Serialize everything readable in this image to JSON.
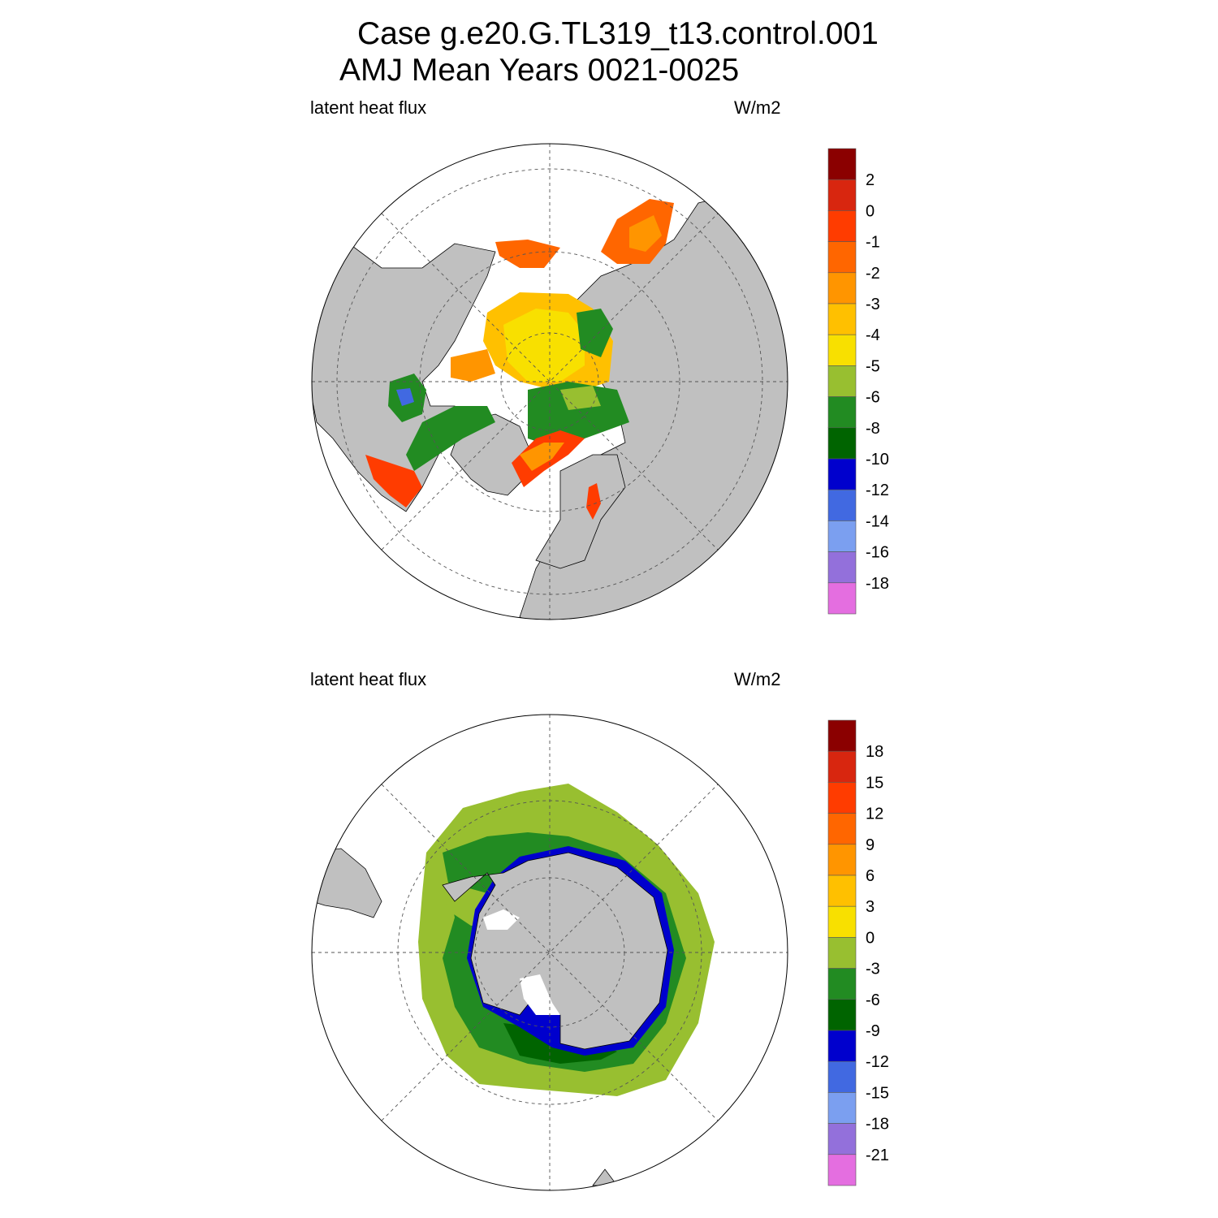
{
  "title": {
    "line1": "Case g.e20.G.TL319_t13.control.001",
    "line2": "AMJ Mean   Years 0021-0025"
  },
  "panels": [
    {
      "id": "north",
      "hemisphere": "Northern Hemisphere polar stereographic",
      "left_label": "latent heat flux",
      "right_label": "W/m2",
      "colorbar": {
        "colors": [
          "#8b0000",
          "#d8260f",
          "#ff3c00",
          "#ff6600",
          "#ff9500",
          "#ffc000",
          "#f8e000",
          "#98bf30",
          "#228b22",
          "#006400",
          "#0000cd",
          "#4169e1",
          "#7b9ff0",
          "#9370db",
          "#e46ee0"
        ],
        "tick_labels": [
          "2",
          "0",
          "-1",
          "-2",
          "-3",
          "-4",
          "-5",
          "-6",
          "-8",
          "-10",
          "-12",
          "-14",
          "-16",
          "-18"
        ]
      }
    },
    {
      "id": "south",
      "hemisphere": "Southern Hemisphere polar stereographic",
      "left_label": "latent heat flux",
      "right_label": "W/m2",
      "colorbar": {
        "colors": [
          "#8b0000",
          "#d8260f",
          "#ff3c00",
          "#ff6600",
          "#ff9500",
          "#ffc000",
          "#f8e000",
          "#98bf30",
          "#228b22",
          "#006400",
          "#0000cd",
          "#4169e1",
          "#7b9ff0",
          "#9370db",
          "#e46ee0"
        ],
        "tick_labels": [
          "18",
          "15",
          "12",
          "9",
          "6",
          "3",
          "0",
          "-3",
          "-6",
          "-9",
          "-12",
          "-15",
          "-18",
          "-21"
        ]
      }
    }
  ],
  "colors": {
    "land": "#c0c0c0",
    "background": "#ffffff",
    "grid": "#555555"
  }
}
